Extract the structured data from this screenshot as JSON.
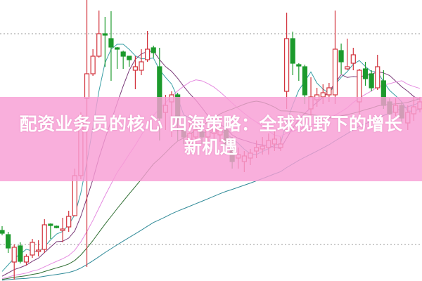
{
  "headline": {
    "line1": "配资业务员的核心 四海策略：全球视野下的增长",
    "line2": "新机遇"
  },
  "colors": {
    "up": "#d2323c",
    "down": "#1c9a2c",
    "banner": "#f89ed4",
    "grid": "#9a9a9a",
    "ma": [
      "#3a9fa6",
      "#7a3a78",
      "#e58be0",
      "#2f6e32",
      "#2f8a98"
    ]
  },
  "chart_data": {
    "type": "candlestick",
    "title": "",
    "xlabel": "",
    "ylabel": "",
    "ylim": [
      0,
      400
    ],
    "grid": "dotted horizontal lines",
    "gridlines": [
      52,
      352
    ],
    "ohlc_fields": [
      "open",
      "high",
      "low",
      "close"
    ],
    "candles": [
      [
        72,
        78,
        65,
        68
      ],
      [
        66,
        70,
        40,
        47
      ],
      [
        27,
        52,
        2,
        48
      ],
      [
        50,
        55,
        25,
        28
      ],
      [
        27,
        38,
        22,
        35
      ],
      [
        37,
        60,
        33,
        55
      ],
      [
        42,
        58,
        35,
        44
      ],
      [
        45,
        88,
        40,
        80
      ],
      [
        81,
        82,
        60,
        79
      ],
      [
        78,
        79,
        75,
        76
      ],
      [
        72,
        90,
        55,
        74
      ],
      [
        77,
        100,
        70,
        92
      ],
      [
        93,
        160,
        92,
        150
      ],
      [
        150,
        240,
        145,
        235
      ],
      [
        260,
        400,
        20,
        295
      ],
      [
        295,
        330,
        292,
        320
      ],
      [
        320,
        385,
        318,
        352
      ],
      [
        352,
        376,
        305,
        350
      ],
      [
        345,
        384,
        285,
        333
      ],
      [
        332,
        333,
        302,
        330
      ],
      [
        326,
        328,
        302,
        320
      ],
      [
        320,
        320,
        305,
        315
      ],
      [
        300,
        320,
        273,
        305
      ],
      [
        300,
        330,
        293,
        312
      ],
      [
        315,
        356,
        312,
        330
      ],
      [
        332,
        335,
        318,
        325
      ],
      [
        305,
        332,
        200,
        232
      ],
      [
        240,
        265,
        215,
        250
      ],
      [
        255,
        270,
        205,
        265
      ],
      [
        265,
        268,
        200,
        230
      ],
      [
        215,
        235,
        195,
        205
      ],
      [
        200,
        225,
        190,
        210
      ],
      [
        205,
        235,
        195,
        215
      ],
      [
        212,
        225,
        195,
        205
      ],
      [
        205,
        230,
        195,
        215
      ],
      [
        210,
        235,
        200,
        220
      ],
      [
        208,
        230,
        198,
        215
      ],
      [
        215,
        230,
        185,
        195
      ],
      [
        200,
        205,
        160,
        170
      ],
      [
        175,
        190,
        160,
        180
      ],
      [
        170,
        185,
        155,
        178
      ],
      [
        175,
        188,
        165,
        182
      ],
      [
        185,
        200,
        175,
        190
      ],
      [
        188,
        205,
        180,
        192
      ],
      [
        190,
        210,
        180,
        200
      ],
      [
        195,
        215,
        185,
        202
      ],
      [
        190,
        205,
        185,
        195
      ],
      [
        270,
        382,
        245,
        345
      ],
      [
        345,
        355,
        293,
        310
      ],
      [
        308,
        310,
        285,
        306
      ],
      [
        305,
        308,
        252,
        265
      ],
      [
        245,
        290,
        235,
        262
      ],
      [
        258,
        275,
        248,
        265
      ],
      [
        262,
        280,
        252,
        268
      ],
      [
        265,
        282,
        255,
        275
      ],
      [
        265,
        385,
        252,
        330
      ],
      [
        328,
        338,
        295,
        312
      ],
      [
        302,
        345,
        300,
        305
      ],
      [
        310,
        332,
        300,
        322
      ],
      [
        255,
        302,
        230,
        300
      ],
      [
        302,
        312,
        278,
        288
      ],
      [
        295,
        300,
        270,
        275
      ],
      [
        275,
        322,
        272,
        305
      ],
      [
        285,
        300,
        245,
        250
      ],
      [
        255,
        260,
        230,
        238
      ],
      [
        240,
        260,
        235,
        250
      ],
      [
        250,
        255,
        225,
        232
      ],
      [
        225,
        250,
        215,
        240
      ],
      [
        238,
        262,
        228,
        248
      ],
      [
        245,
        262,
        240,
        255
      ]
    ]
  }
}
